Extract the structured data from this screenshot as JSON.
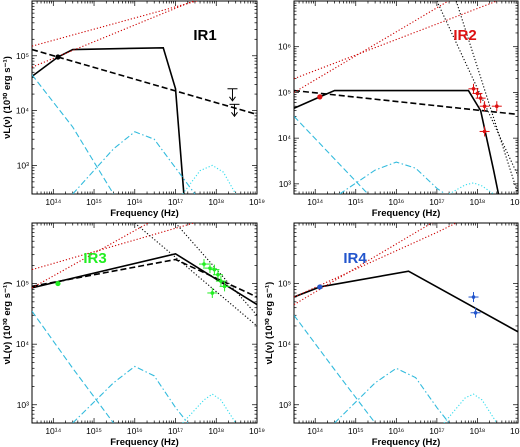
{
  "chart_data": [
    {
      "type": "line",
      "title": "IR1",
      "title_color": "#000000",
      "xlabel": "Frequency (Hz)",
      "ylabel": "νL(ν) (10³⁰ erg s⁻¹)",
      "xscale": "log",
      "yscale": "log",
      "xlim": [
        30000000000000.0,
        1e+19
      ],
      "ylim": [
        300,
        1000000.0
      ],
      "x_tick_labels": [
        "10¹⁴",
        "10¹⁵",
        "10¹⁶",
        "10¹⁷",
        "10¹⁸",
        "10¹⁹"
      ],
      "y_tick_labels": [
        "10³",
        "10⁴",
        "10⁵"
      ],
      "series": [
        {
          "style": "solid",
          "color": "#000000",
          "points": [
            [
              30000000000000.0,
              42000
            ],
            [
              130000000000000.0,
              95000
            ],
            [
              300000000000000.0,
              130000
            ],
            [
              5e+16,
              140000
            ],
            [
              1e+17,
              25000
            ],
            [
              1.6e+17,
              300
            ]
          ]
        },
        {
          "style": "dashed",
          "color": "#000000",
          "points": [
            [
              30000000000000.0,
              130000
            ],
            [
              1e+19,
              8500
            ]
          ]
        },
        {
          "style": "dotted",
          "color": "#cc0000",
          "points": [
            [
              30000000000000.0,
              150000
            ],
            [
              1e+19,
              2000000
            ]
          ]
        },
        {
          "style": "dotted",
          "color": "#cc0000",
          "points": [
            [
              30000000000000.0,
              62000
            ],
            [
              1e+19,
              3000000
            ]
          ]
        },
        {
          "style": "dashed",
          "color": "#33bbdd",
          "points": [
            [
              30000000000000.0,
              45000
            ],
            [
              300000000000000.0,
              5000
            ],
            [
              3000000000000000.0,
              300
            ]
          ]
        },
        {
          "style": "dashdot",
          "color": "#33bbdd",
          "points": [
            [
              300000000000000.0,
              300
            ],
            [
              3000000000000000.0,
              2000
            ],
            [
              1e+16,
              4100
            ],
            [
              3e+16,
              3000
            ],
            [
              1e+17,
              900
            ],
            [
              3e+17,
              300
            ]
          ]
        },
        {
          "style": "dotted",
          "color": "#33ddee",
          "points": [
            [
              1.5e+17,
              300
            ],
            [
              4e+17,
              800
            ],
            [
              8e+17,
              1000
            ],
            [
              1.5e+18,
              750
            ],
            [
              3e+18,
              300
            ]
          ]
        }
      ],
      "marker_points": [
        {
          "x": 130000000000000.0,
          "y": 95000,
          "color": "#000000",
          "marker": "filled-circle"
        }
      ],
      "upper_limits": [
        {
          "x": 2.5e+18,
          "y": 25000
        },
        {
          "x": 2.8e+18,
          "y": 13000
        }
      ]
    },
    {
      "type": "line",
      "title": "IR2",
      "title_color": "#dd1111",
      "xlabel": "Frequency (Hz)",
      "ylabel": "",
      "xscale": "log",
      "yscale": "log",
      "xlim": [
        30000000000000.0,
        1e+19
      ],
      "ylim": [
        600,
        10000000.0
      ],
      "x_tick_labels": [
        "10¹⁴",
        "10¹⁵",
        "10¹⁶",
        "10¹⁷",
        "10¹⁸",
        "10¹⁹"
      ],
      "y_tick_labels": [
        "10³",
        "10⁴",
        "10⁵",
        "10⁶"
      ],
      "series": [
        {
          "style": "solid",
          "color": "#000000",
          "points": [
            [
              30000000000000.0,
              45000
            ],
            [
              130000000000000.0,
              80000
            ],
            [
              300000000000000.0,
              110000
            ],
            [
              6e+17,
              110000
            ],
            [
              1.2e+18,
              40000
            ],
            [
              2.5e+18,
              2000
            ],
            [
              3.3e+18,
              600
            ]
          ]
        },
        {
          "style": "dashed",
          "color": "#000000",
          "points": [
            [
              30000000000000.0,
              110000
            ],
            [
              1e+19,
              33000
            ]
          ]
        },
        {
          "style": "dotted",
          "color": "#cc0000",
          "points": [
            [
              30000000000000.0,
              200000
            ],
            [
              1e+19,
              15000000.0
            ]
          ]
        },
        {
          "style": "dotted",
          "color": "#cc0000",
          "points": [
            [
              30000000000000.0,
              100000
            ],
            [
              1e+19,
              80000000.0
            ]
          ]
        },
        {
          "style": "dotted",
          "color": "#000000",
          "points": [
            [
              1e+17,
              10000000.0
            ],
            [
              1e+19,
              1500
            ]
          ]
        },
        {
          "style": "dotted",
          "color": "#000000",
          "points": [
            [
              3e+17,
              10000000.0
            ],
            [
              1e+19,
              600
            ]
          ]
        },
        {
          "style": "dashed",
          "color": "#33bbdd",
          "points": [
            [
              30000000000000.0,
              30000
            ],
            [
              300000000000000.0,
              3500
            ],
            [
              2000000000000000.0,
              600
            ]
          ]
        },
        {
          "style": "dashdot",
          "color": "#33bbdd",
          "points": [
            [
              400000000000000.0,
              600
            ],
            [
              3000000000000000.0,
              2000
            ],
            [
              1e+16,
              3000
            ],
            [
              3e+16,
              2200
            ],
            [
              1e+17,
              800
            ],
            [
              1.6e+17,
              600
            ]
          ]
        },
        {
          "style": "dotted",
          "color": "#33ddee",
          "points": [
            [
              2e+17,
              600
            ],
            [
              5e+17,
              950
            ],
            [
              8e+17,
              1050
            ],
            [
              1.3e+18,
              900
            ],
            [
              2.5e+18,
              600
            ]
          ]
        }
      ],
      "marker_points": [
        {
          "x": 130000000000000.0,
          "y": 80000,
          "color": "#dd1111",
          "marker": "filled-circle"
        },
        {
          "x": 8e+17,
          "y": 120000,
          "color": "#dd1111",
          "marker": "errorbar"
        },
        {
          "x": 1e+18,
          "y": 95000,
          "color": "#dd1111",
          "marker": "errorbar"
        },
        {
          "x": 1.2e+18,
          "y": 75000,
          "color": "#dd1111",
          "marker": "errorbar"
        },
        {
          "x": 1.5e+18,
          "y": 50000,
          "color": "#dd1111",
          "marker": "errorbar"
        },
        {
          "x": 3e+18,
          "y": 50000,
          "color": "#dd1111",
          "marker": "errorbar"
        },
        {
          "x": 1.5e+18,
          "y": 14000,
          "color": "#dd1111",
          "marker": "errorbar"
        }
      ],
      "upper_limits": []
    },
    {
      "type": "line",
      "title": "IR3",
      "title_color": "#22ee22",
      "xlabel": "Frequency (Hz)",
      "ylabel": "νL(ν) (10³⁰ erg s⁻¹)",
      "xscale": "log",
      "yscale": "log",
      "xlim": [
        30000000000000.0,
        1e+19
      ],
      "ylim": [
        500,
        1000000.0
      ],
      "x_tick_labels": [
        "10¹⁴",
        "10¹⁵",
        "10¹⁶",
        "10¹⁷",
        "10¹⁸",
        "10¹⁹"
      ],
      "y_tick_labels": [
        "10³",
        "10⁴",
        "10⁵"
      ],
      "series": [
        {
          "style": "solid",
          "color": "#000000",
          "points": [
            [
              30000000000000.0,
              85000
            ],
            [
              1e+17,
              310000
            ],
            [
              1e+19,
              45000
            ]
          ]
        },
        {
          "style": "dashed",
          "color": "#000000",
          "points": [
            [
              30000000000000.0,
              90000
            ],
            [
              1e+17,
              250000
            ],
            [
              1e+19,
              60000
            ]
          ]
        },
        {
          "style": "dotted",
          "color": "#cc0000",
          "points": [
            [
              30000000000000.0,
              170000
            ],
            [
              1e+19,
              2000000
            ]
          ]
        },
        {
          "style": "dotted",
          "color": "#cc0000",
          "points": [
            [
              30000000000000.0,
              85000
            ],
            [
              1e+19,
              10000000
            ]
          ]
        },
        {
          "style": "dotted",
          "color": "#000000",
          "points": [
            [
              1e+16,
              1000000.0
            ],
            [
              1e+19,
              20000
            ]
          ]
        },
        {
          "style": "dotted",
          "color": "#000000",
          "points": [
            [
              1e+17,
              1000000.0
            ],
            [
              1e+19,
              30000
            ]
          ]
        },
        {
          "style": "dashed",
          "color": "#33bbdd",
          "points": [
            [
              30000000000000.0,
              35000
            ],
            [
              300000000000000.0,
              4000
            ],
            [
              3000000000000000.0,
              500
            ]
          ]
        },
        {
          "style": "dashdot",
          "color": "#33bbdd",
          "points": [
            [
              300000000000000.0,
              500
            ],
            [
              3000000000000000.0,
              2300
            ],
            [
              1e+16,
              4300
            ],
            [
              3e+16,
              3000
            ],
            [
              1e+17,
              900
            ],
            [
              2e+17,
              500
            ]
          ]
        },
        {
          "style": "dotted",
          "color": "#33ddee",
          "points": [
            [
              1.5e+17,
              500
            ],
            [
              5e+17,
              1200
            ],
            [
              8e+17,
              1500
            ],
            [
              1.3e+18,
              1200
            ],
            [
              3e+18,
              500
            ]
          ]
        }
      ],
      "marker_points": [
        {
          "x": 130000000000000.0,
          "y": 100000,
          "color": "#22ee22",
          "marker": "filled-circle"
        },
        {
          "x": 5e+17,
          "y": 210000,
          "color": "#22ee22",
          "marker": "errorbar"
        },
        {
          "x": 7e+17,
          "y": 180000,
          "color": "#22ee22",
          "marker": "errorbar"
        },
        {
          "x": 9e+17,
          "y": 170000,
          "color": "#22ee22",
          "marker": "errorbar"
        },
        {
          "x": 1.1e+18,
          "y": 140000,
          "color": "#22ee22",
          "marker": "errorbar"
        },
        {
          "x": 1.3e+18,
          "y": 110000,
          "color": "#22ee22",
          "marker": "errorbar"
        },
        {
          "x": 1.6e+18,
          "y": 90000,
          "color": "#22ee22",
          "marker": "errorbar"
        },
        {
          "x": 8e+17,
          "y": 70000,
          "color": "#22ee22",
          "marker": "errorbar"
        }
      ],
      "upper_limits": []
    },
    {
      "type": "line",
      "title": "IR4",
      "title_color": "#2255cc",
      "xlabel": "Frequency (Hz)",
      "ylabel": "νL(ν) (10³⁰ erg s⁻¹)",
      "xscale": "log",
      "yscale": "log",
      "xlim": [
        30000000000000.0,
        1e+19
      ],
      "ylim": [
        500,
        1000000.0
      ],
      "x_tick_labels": [
        "10¹⁴",
        "10¹⁵",
        "10¹⁶",
        "10¹⁷",
        "10¹⁸",
        "10¹⁹"
      ],
      "y_tick_labels": [
        "10³",
        "10⁴",
        "10⁵"
      ],
      "series": [
        {
          "style": "solid",
          "color": "#000000",
          "points": [
            [
              30000000000000.0,
              60000
            ],
            [
              130000000000000.0,
              88000
            ],
            [
              2e+16,
              160000
            ],
            [
              1e+19,
              16000
            ]
          ]
        },
        {
          "style": "dotted",
          "color": "#cc0000",
          "points": [
            [
              30000000000000.0,
              60000
            ],
            [
              1e+17,
              700000
            ],
            [
              3e+17,
              1000000
            ]
          ]
        },
        {
          "style": "dotted",
          "color": "#cc0000",
          "points": [
            [
              30000000000000.0,
              45000
            ],
            [
              1e+19,
              7000000
            ]
          ]
        },
        {
          "style": "dashed",
          "color": "#33bbdd",
          "points": [
            [
              30000000000000.0,
              30000
            ],
            [
              300000000000000.0,
              3800
            ],
            [
              3000000000000000.0,
              500
            ]
          ]
        },
        {
          "style": "dashdot",
          "color": "#33bbdd",
          "points": [
            [
              300000000000000.0,
              500
            ],
            [
              3000000000000000.0,
              2300
            ],
            [
              1e+16,
              4000
            ],
            [
              3e+16,
              2800
            ],
            [
              1e+17,
              900
            ],
            [
              2e+17,
              500
            ]
          ]
        },
        {
          "style": "dotted",
          "color": "#33ddee",
          "points": [
            [
              1.5e+17,
              500
            ],
            [
              5e+17,
              1300
            ],
            [
              8e+17,
              1500
            ],
            [
              1.3e+18,
              1200
            ],
            [
              3e+18,
              500
            ]
          ]
        }
      ],
      "marker_points": [
        {
          "x": 130000000000000.0,
          "y": 88000,
          "color": "#2255cc",
          "marker": "filled-circle"
        },
        {
          "x": 8e+17,
          "y": 60000,
          "color": "#2255cc",
          "marker": "errorbar"
        },
        {
          "x": 9e+17,
          "y": 33000,
          "color": "#2255cc",
          "marker": "errorbar"
        }
      ],
      "upper_limits": []
    }
  ]
}
